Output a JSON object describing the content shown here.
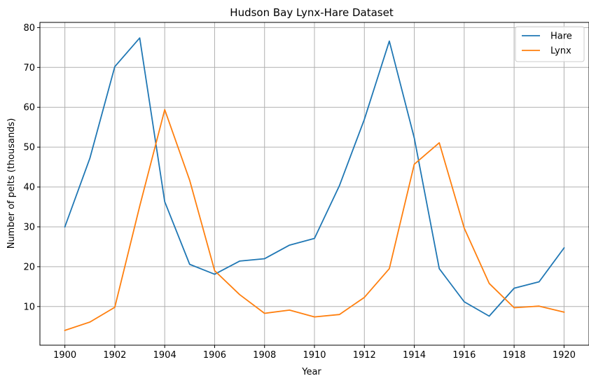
{
  "chart_data": {
    "type": "line",
    "title": "Hudson Bay Lynx-Hare Dataset",
    "xlabel": "Year",
    "ylabel": "Number of pelts (thousands)",
    "x": [
      1900,
      1901,
      1902,
      1903,
      1904,
      1905,
      1906,
      1907,
      1908,
      1909,
      1910,
      1911,
      1912,
      1913,
      1914,
      1915,
      1916,
      1917,
      1918,
      1919,
      1920
    ],
    "xlim": [
      1899.0,
      1921.0
    ],
    "ylim": [
      0.3,
      81.3
    ],
    "xticks": [
      1900,
      1902,
      1904,
      1906,
      1908,
      1910,
      1912,
      1914,
      1916,
      1918,
      1920
    ],
    "yticks": [
      10,
      20,
      30,
      40,
      50,
      60,
      70,
      80
    ],
    "grid": true,
    "legend_position": "top-right",
    "series": [
      {
        "name": "Hare",
        "color": "#1f77b4",
        "values": [
          30.0,
          47.2,
          70.2,
          77.4,
          36.3,
          20.6,
          18.1,
          21.4,
          22.0,
          25.4,
          27.1,
          40.3,
          57.0,
          76.6,
          52.3,
          19.5,
          11.2,
          7.6,
          14.6,
          16.2,
          24.7
        ]
      },
      {
        "name": "Lynx",
        "color": "#ff7f0e",
        "values": [
          4.0,
          6.1,
          9.8,
          35.2,
          59.4,
          41.7,
          19.0,
          13.0,
          8.3,
          9.1,
          7.4,
          8.0,
          12.3,
          19.5,
          45.7,
          51.1,
          29.7,
          15.8,
          9.7,
          10.1,
          8.6
        ]
      }
    ]
  }
}
